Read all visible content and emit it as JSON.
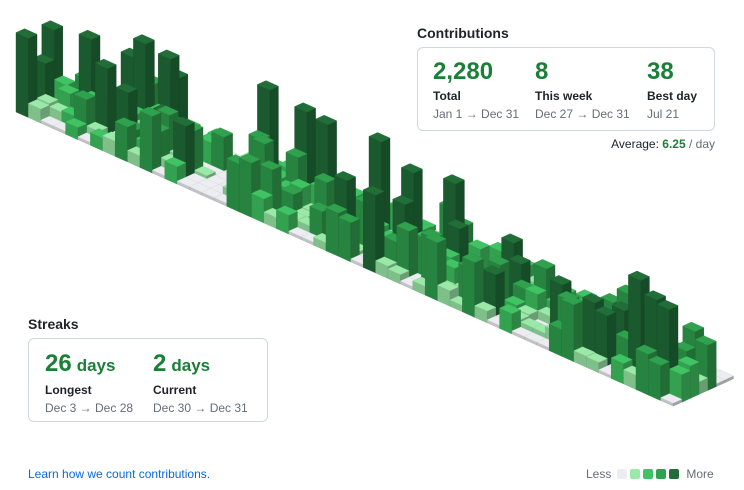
{
  "contributions": {
    "title": "Contributions",
    "total": {
      "value": "2,280",
      "label": "Total",
      "range": "Jan 1 → Dec 31"
    },
    "this_week": {
      "value": "8",
      "label": "This week",
      "range": "Dec 27 → Dec 31"
    },
    "best_day": {
      "value": "38",
      "label": "Best day",
      "range": "Jul 21"
    },
    "average": {
      "prefix": "Average: ",
      "value": "6.25",
      "suffix": " / day"
    }
  },
  "streaks": {
    "title": "Streaks",
    "longest": {
      "value": "26",
      "unit": "days",
      "label": "Longest",
      "range": "Dec 3 → Dec 28"
    },
    "current": {
      "value": "2",
      "unit": "days",
      "label": "Current",
      "range": "Dec 30 → Dec 31"
    }
  },
  "footer": {
    "learn_link": "Learn how we count contributions.",
    "legend_less": "Less",
    "legend_more": "More"
  },
  "colors": {
    "accent": "#1a7f37",
    "link": "#0969da",
    "levels": [
      "#ebedf0",
      "#9be9a8",
      "#40c463",
      "#30a14e",
      "#216e39"
    ]
  }
}
